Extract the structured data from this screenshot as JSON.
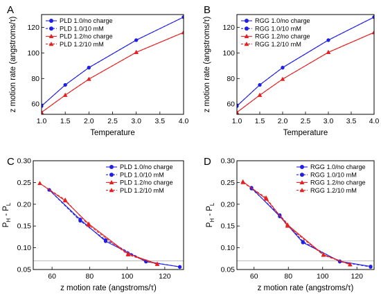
{
  "chart_data": [
    {
      "panel_label": "A",
      "type": "line",
      "xlabel": "Temperature",
      "ylabel": "z motion rate (angstroms/τ)",
      "xlim": [
        1.0,
        4.0
      ],
      "ylim": [
        52,
        130
      ],
      "xticks": [
        1.0,
        1.5,
        2.0,
        2.5,
        3.0,
        3.5,
        4.0
      ],
      "xtick_labels": [
        "1.0",
        "1.5",
        "2.0",
        "2.5",
        "3.0",
        "3.5",
        "4.0"
      ],
      "yticks": [
        60,
        80,
        100,
        120
      ],
      "ytick_labels": [
        "60",
        "80",
        "100",
        "120"
      ],
      "legend_position": "top-left",
      "series": [
        {
          "name": "PLD 1.0/no charge",
          "color": "#1f1fe6",
          "marker": "circle",
          "dash": "solid",
          "x": [
            1.0,
            1.5,
            2.0,
            3.0,
            4.0
          ],
          "y": [
            58.5,
            75,
            88.5,
            110,
            128
          ]
        },
        {
          "name": "PLD 1.0/10 mM",
          "color": "#1f1fe6",
          "marker": "circle",
          "dash": "dashed",
          "x": [
            1.0,
            1.5,
            2.0,
            3.0,
            4.0
          ],
          "y": [
            58.5,
            75,
            88.5,
            110,
            128
          ]
        },
        {
          "name": "PLD 1.2/no charge",
          "color": "#e61f1f",
          "marker": "triangle",
          "dash": "solid",
          "x": [
            1.0,
            1.5,
            2.0,
            3.0,
            4.0
          ],
          "y": [
            53.5,
            67,
            79.5,
            100.5,
            116
          ]
        },
        {
          "name": "PLD 1.2/10 mM",
          "color": "#e61f1f",
          "marker": "triangle",
          "dash": "dashed",
          "x": [
            1.0,
            1.5,
            2.0,
            3.0,
            4.0
          ],
          "y": [
            53.5,
            67,
            79.5,
            100.5,
            116
          ]
        }
      ]
    },
    {
      "panel_label": "B",
      "type": "line",
      "xlabel": "Temperature",
      "ylabel": "z motion rate (angstroms/τ)",
      "xlim": [
        1.0,
        4.0
      ],
      "ylim": [
        52,
        130
      ],
      "xticks": [
        1.0,
        1.5,
        2.0,
        2.5,
        3.0,
        3.5,
        4.0
      ],
      "xtick_labels": [
        "1.0",
        "1.5",
        "2.0",
        "2.5",
        "3.0",
        "3.5",
        "4.0"
      ],
      "yticks": [
        60,
        80,
        100,
        120
      ],
      "ytick_labels": [
        "60",
        "80",
        "100",
        "120"
      ],
      "legend_position": "top-left",
      "series": [
        {
          "name": "RGG 1.0/no charge",
          "color": "#1f1fe6",
          "marker": "circle",
          "dash": "solid",
          "x": [
            1.0,
            1.5,
            2.0,
            3.0,
            4.0
          ],
          "y": [
            58.5,
            75,
            88.5,
            110,
            128
          ]
        },
        {
          "name": "RGG 1.0/10 mM",
          "color": "#1f1fe6",
          "marker": "circle",
          "dash": "dashed",
          "x": [
            1.0,
            1.5,
            2.0,
            3.0,
            4.0
          ],
          "y": [
            58.5,
            75,
            88.5,
            110,
            128
          ]
        },
        {
          "name": "RGG 1.2/no charge",
          "color": "#e61f1f",
          "marker": "triangle",
          "dash": "solid",
          "x": [
            1.0,
            1.5,
            2.0,
            3.0,
            4.0
          ],
          "y": [
            53.5,
            67,
            79.5,
            100.5,
            116
          ]
        },
        {
          "name": "RGG 1.2/10 mM",
          "color": "#e61f1f",
          "marker": "triangle",
          "dash": "dashed",
          "x": [
            1.0,
            1.5,
            2.0,
            3.0,
            4.0
          ],
          "y": [
            53.5,
            67,
            79.5,
            100.5,
            116
          ]
        }
      ]
    },
    {
      "panel_label": "C",
      "type": "line",
      "xlabel": "z motion rate (angstroms/τ)",
      "ylabel_main": "P",
      "ylabel_sub1": "H",
      "ylabel_mid": " - P",
      "ylabel_sub2": "L",
      "xlim": [
        50,
        130
      ],
      "ylim": [
        0.05,
        0.3
      ],
      "xticks": [
        60,
        80,
        100,
        120
      ],
      "xtick_labels": [
        "60",
        "80",
        "100",
        "120"
      ],
      "yticks": [
        0.05,
        0.1,
        0.15,
        0.2,
        0.25,
        0.3
      ],
      "ytick_labels": [
        "0.05",
        "0.10",
        "0.15",
        "0.20",
        "0.25",
        "0.30"
      ],
      "reference_line_y": 0.07,
      "legend_position": "top-right",
      "series": [
        {
          "name": "PLD 1.0/no charge",
          "color": "#1f1fe6",
          "marker": "circle",
          "dash": "solid",
          "x": [
            58.5,
            75,
            88.5,
            110,
            128
          ],
          "y": [
            0.233,
            0.165,
            0.115,
            0.068,
            0.056
          ]
        },
        {
          "name": "PLD 1.0/10 mM",
          "color": "#1f1fe6",
          "marker": "circle",
          "dash": "dashed",
          "x": [
            58.5,
            75,
            88.5,
            110,
            128
          ],
          "y": [
            0.233,
            0.162,
            0.118,
            0.069,
            0.056
          ]
        },
        {
          "name": "PLD 1.2/no charge",
          "color": "#e61f1f",
          "marker": "triangle",
          "dash": "solid",
          "x": [
            53.5,
            67,
            79.5,
            100.5,
            116
          ],
          "y": [
            0.248,
            0.208,
            0.155,
            0.086,
            0.063
          ]
        },
        {
          "name": "PLD 1.2/10 mM",
          "color": "#e61f1f",
          "marker": "triangle",
          "dash": "dashed",
          "x": [
            53.5,
            67,
            79.5,
            100.5,
            116
          ],
          "y": [
            0.248,
            0.21,
            0.152,
            0.084,
            0.062
          ]
        }
      ]
    },
    {
      "panel_label": "D",
      "type": "line",
      "xlabel": "z motion rate (angstroms/τ)",
      "ylabel_main": "P",
      "ylabel_sub1": "H",
      "ylabel_mid": " - P",
      "ylabel_sub2": "L",
      "xlim": [
        50,
        130
      ],
      "ylim": [
        0.05,
        0.3
      ],
      "xticks": [
        60,
        80,
        100,
        120
      ],
      "xtick_labels": [
        "60",
        "80",
        "100",
        "120"
      ],
      "yticks": [
        0.05,
        0.1,
        0.15,
        0.2,
        0.25,
        0.3
      ],
      "ytick_labels": [
        "0.05",
        "0.10",
        "0.15",
        "0.20",
        "0.25",
        "0.30"
      ],
      "reference_line_y": 0.07,
      "legend_position": "top-right",
      "series": [
        {
          "name": "RGG 1.0/no charge",
          "color": "#1f1fe6",
          "marker": "circle",
          "dash": "solid",
          "x": [
            58.5,
            75,
            88.5,
            110,
            128
          ],
          "y": [
            0.238,
            0.172,
            0.112,
            0.069,
            0.057
          ]
        },
        {
          "name": "RGG 1.0/10 mM",
          "color": "#1f1fe6",
          "marker": "circle",
          "dash": "dashed",
          "x": [
            58.5,
            75,
            88.5,
            110,
            128
          ],
          "y": [
            0.236,
            0.175,
            0.114,
            0.068,
            0.056
          ]
        },
        {
          "name": "RGG 1.2/no charge",
          "color": "#e61f1f",
          "marker": "triangle",
          "dash": "solid",
          "x": [
            53.5,
            67,
            79.5,
            100.5,
            116
          ],
          "y": [
            0.252,
            0.212,
            0.153,
            0.084,
            0.062
          ]
        },
        {
          "name": "RGG 1.2/10 mM",
          "color": "#e61f1f",
          "marker": "triangle",
          "dash": "dashed",
          "x": [
            53.5,
            67,
            79.5,
            100.5,
            116
          ],
          "y": [
            0.25,
            0.215,
            0.15,
            0.083,
            0.061
          ]
        }
      ]
    }
  ]
}
